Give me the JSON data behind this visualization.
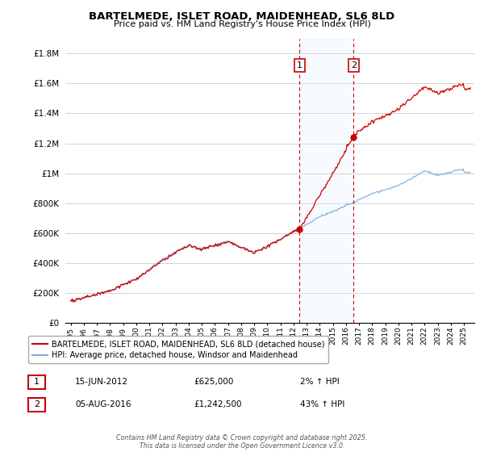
{
  "title": "BARTELMEDE, ISLET ROAD, MAIDENHEAD, SL6 8LD",
  "subtitle": "Price paid vs. HM Land Registry's House Price Index (HPI)",
  "legend_line1": "BARTELMEDE, ISLET ROAD, MAIDENHEAD, SL6 8LD (detached house)",
  "legend_line2": "HPI: Average price, detached house, Windsor and Maidenhead",
  "annotation1_date": "15-JUN-2012",
  "annotation1_price": "£625,000",
  "annotation1_hpi": "2% ↑ HPI",
  "annotation2_date": "05-AUG-2016",
  "annotation2_price": "£1,242,500",
  "annotation2_hpi": "43% ↑ HPI",
  "footer": "Contains HM Land Registry data © Crown copyright and database right 2025.\nThis data is licensed under the Open Government Licence v3.0.",
  "red_color": "#cc0000",
  "blue_color": "#7aaddb",
  "bg_color": "#ffffff",
  "shaded_color": "#ddeeff",
  "ylim": [
    0,
    1900000
  ],
  "yticks": [
    0,
    200000,
    400000,
    600000,
    800000,
    1000000,
    1200000,
    1400000,
    1600000,
    1800000
  ],
  "ytick_labels": [
    "£0",
    "£200K",
    "£400K",
    "£600K",
    "£800K",
    "£1M",
    "£1.2M",
    "£1.4M",
    "£1.6M",
    "£1.8M"
  ],
  "sale1_x": 2012.46,
  "sale1_y": 625000,
  "sale2_x": 2016.59,
  "sale2_y": 1242500,
  "vline1_x": 2012.46,
  "vline2_x": 2016.59,
  "shade_x1": 2012.46,
  "shade_x2": 2016.59,
  "xmin": 1994.6,
  "xmax": 2025.8
}
